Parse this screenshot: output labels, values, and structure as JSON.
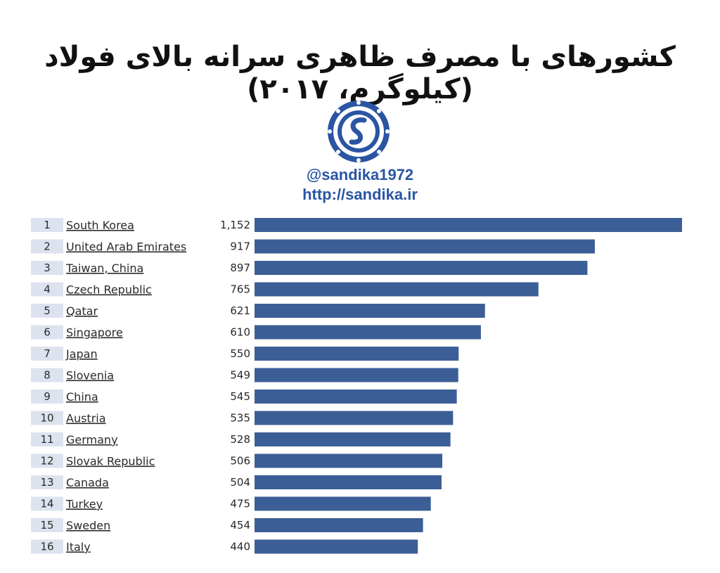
{
  "header": {
    "title": "کشورهای با مصرف ظاهری سرانه بالای فولاد (کیلوگرم، ۲۰۱۷)",
    "handle": "@sandika1972",
    "url": "http://sandika.ir",
    "logo_icon": "sandika-logo-icon"
  },
  "colors": {
    "bar": "#3c5e96",
    "rank_bg": "#dde3ee",
    "brand": "#2b55a3"
  },
  "chart_data": {
    "type": "bar",
    "orientation": "horizontal",
    "categories": [
      "South Korea",
      "United Arab Emirates",
      "Taiwan, China",
      "Czech Republic",
      "Qatar",
      "Singapore",
      "Japan",
      "Slovenia",
      "China",
      "Austria",
      "Germany",
      "Slovak Republic",
      "Canada",
      "Turkey",
      "Sweden",
      "Italy"
    ],
    "ranks": [
      "1",
      "2",
      "3",
      "4",
      "5",
      "6",
      "7",
      "8",
      "9",
      "10",
      "11",
      "12",
      "13",
      "14",
      "15",
      "16"
    ],
    "values": [
      1152,
      917,
      897,
      765,
      621,
      610,
      550,
      549,
      545,
      535,
      528,
      506,
      504,
      475,
      454,
      440
    ],
    "value_labels": [
      "1,152",
      "917",
      "897",
      "765",
      "621",
      "610",
      "550",
      "549",
      "545",
      "535",
      "528",
      "506",
      "504",
      "475",
      "454",
      "440"
    ],
    "xlim": [
      0,
      1152
    ],
    "grid": false,
    "legend": "none"
  }
}
